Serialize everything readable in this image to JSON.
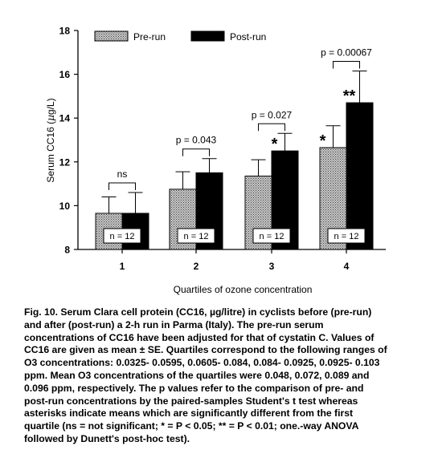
{
  "chart_data": {
    "type": "bar",
    "xlabel": "Quartiles of ozone concentration",
    "ylabel_parts": [
      "Serum CC16 (",
      "µ",
      "g/L)"
    ],
    "ylim": [
      8,
      18
    ],
    "yticks": [
      "8",
      "10",
      "12",
      "14",
      "16",
      "18"
    ],
    "categories": [
      "1",
      "2",
      "3",
      "4"
    ],
    "series": [
      {
        "name": "Pre-run",
        "values": [
          9.65,
          10.75,
          11.35,
          12.65
        ],
        "se": [
          0.75,
          0.8,
          0.75,
          1.0
        ],
        "color": "#8c8c8c",
        "pattern": "crosshatch"
      },
      {
        "name": "Post-run",
        "values": [
          9.65,
          11.5,
          12.5,
          14.7
        ],
        "se": [
          0.95,
          0.65,
          0.8,
          1.45
        ],
        "color": "#000000"
      }
    ],
    "n_labels": [
      "n = 12",
      "n = 12",
      "n = 12",
      "n = 12"
    ],
    "p_labels": [
      "ns",
      "p = 0.043",
      "p = 0.027",
      "p = 0.00067"
    ],
    "pre_star": [
      "",
      "",
      "",
      "*"
    ],
    "post_star": [
      "",
      "",
      "*",
      "**"
    ],
    "legend_position": "top"
  },
  "caption": {
    "lines": [
      "Fig. 10. Serum Clara cell protein (CC16,  µg/litre) in cyclists before (pre-run)",
      "and after (post-run) a 2-h run in Parma (Italy). The pre-run serum",
      "concentrations of CC16 have been adjusted for that of cystatin C. Values of",
      "CC16 are given as mean ± SE. Quartiles correspond to the following ranges of",
      "O3 concentrations: 0.0325- 0.0595, 0.0605- 0.084, 0.084- 0.0925, 0.0925- 0.103",
      "ppm. Mean O3 concentrations of the quartiles were 0.048, 0.072, 0.089 and",
      "0.096 ppm, respectively. The p values refer to the comparison of pre- and",
      "post-run concentrations by the paired-samples Student's t test whereas",
      "asterisks indicate means which are significantly different from the first",
      "quartile (ns = not significant; * = P < 0.05; ** = P < 0.01; one.-way ANOVA",
      "followed by Dunett's post-hoc test)."
    ]
  }
}
